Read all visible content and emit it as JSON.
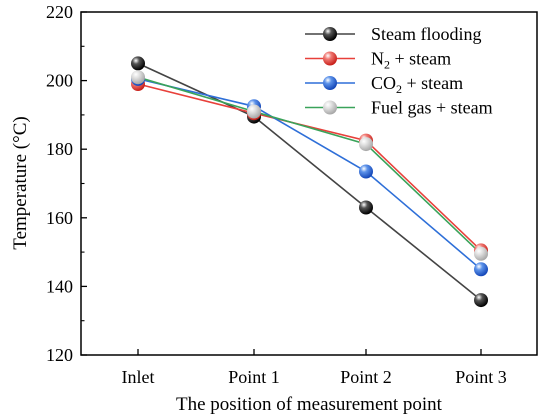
{
  "chart_data": {
    "type": "line",
    "title": "",
    "xlabel": "The position of measurement point",
    "ylabel": "Temperature (°C)",
    "categories": [
      "Inlet",
      "Point 1",
      "Point 2",
      "Point 3"
    ],
    "ylim": [
      120,
      220
    ],
    "yticks": [
      120,
      140,
      160,
      180,
      200,
      220
    ],
    "grid": false,
    "legend_position": "top-right",
    "series": [
      {
        "name": "Steam flooding",
        "color": "#000000",
        "line_color": "#444444",
        "values": [
          205,
          189.5,
          163,
          136
        ]
      },
      {
        "name": "N2 + steam",
        "name_main": "N",
        "name_sub": "2",
        "name_rest": " + steam",
        "color": "#e8403a",
        "line_color": "#e8403a",
        "values": [
          199,
          190.5,
          182.5,
          150.5
        ]
      },
      {
        "name": "CO2 + steam",
        "name_main": "CO",
        "name_sub": "2",
        "name_rest": " + steam",
        "color": "#2e6fd8",
        "line_color": "#2e6fd8",
        "values": [
          200.5,
          192.5,
          173.5,
          145
        ]
      },
      {
        "name": "Fuel gas + steam",
        "color": "#c8c8c8",
        "line_color": "#3aa35a",
        "values": [
          201,
          191,
          181.5,
          149.5
        ]
      }
    ]
  }
}
